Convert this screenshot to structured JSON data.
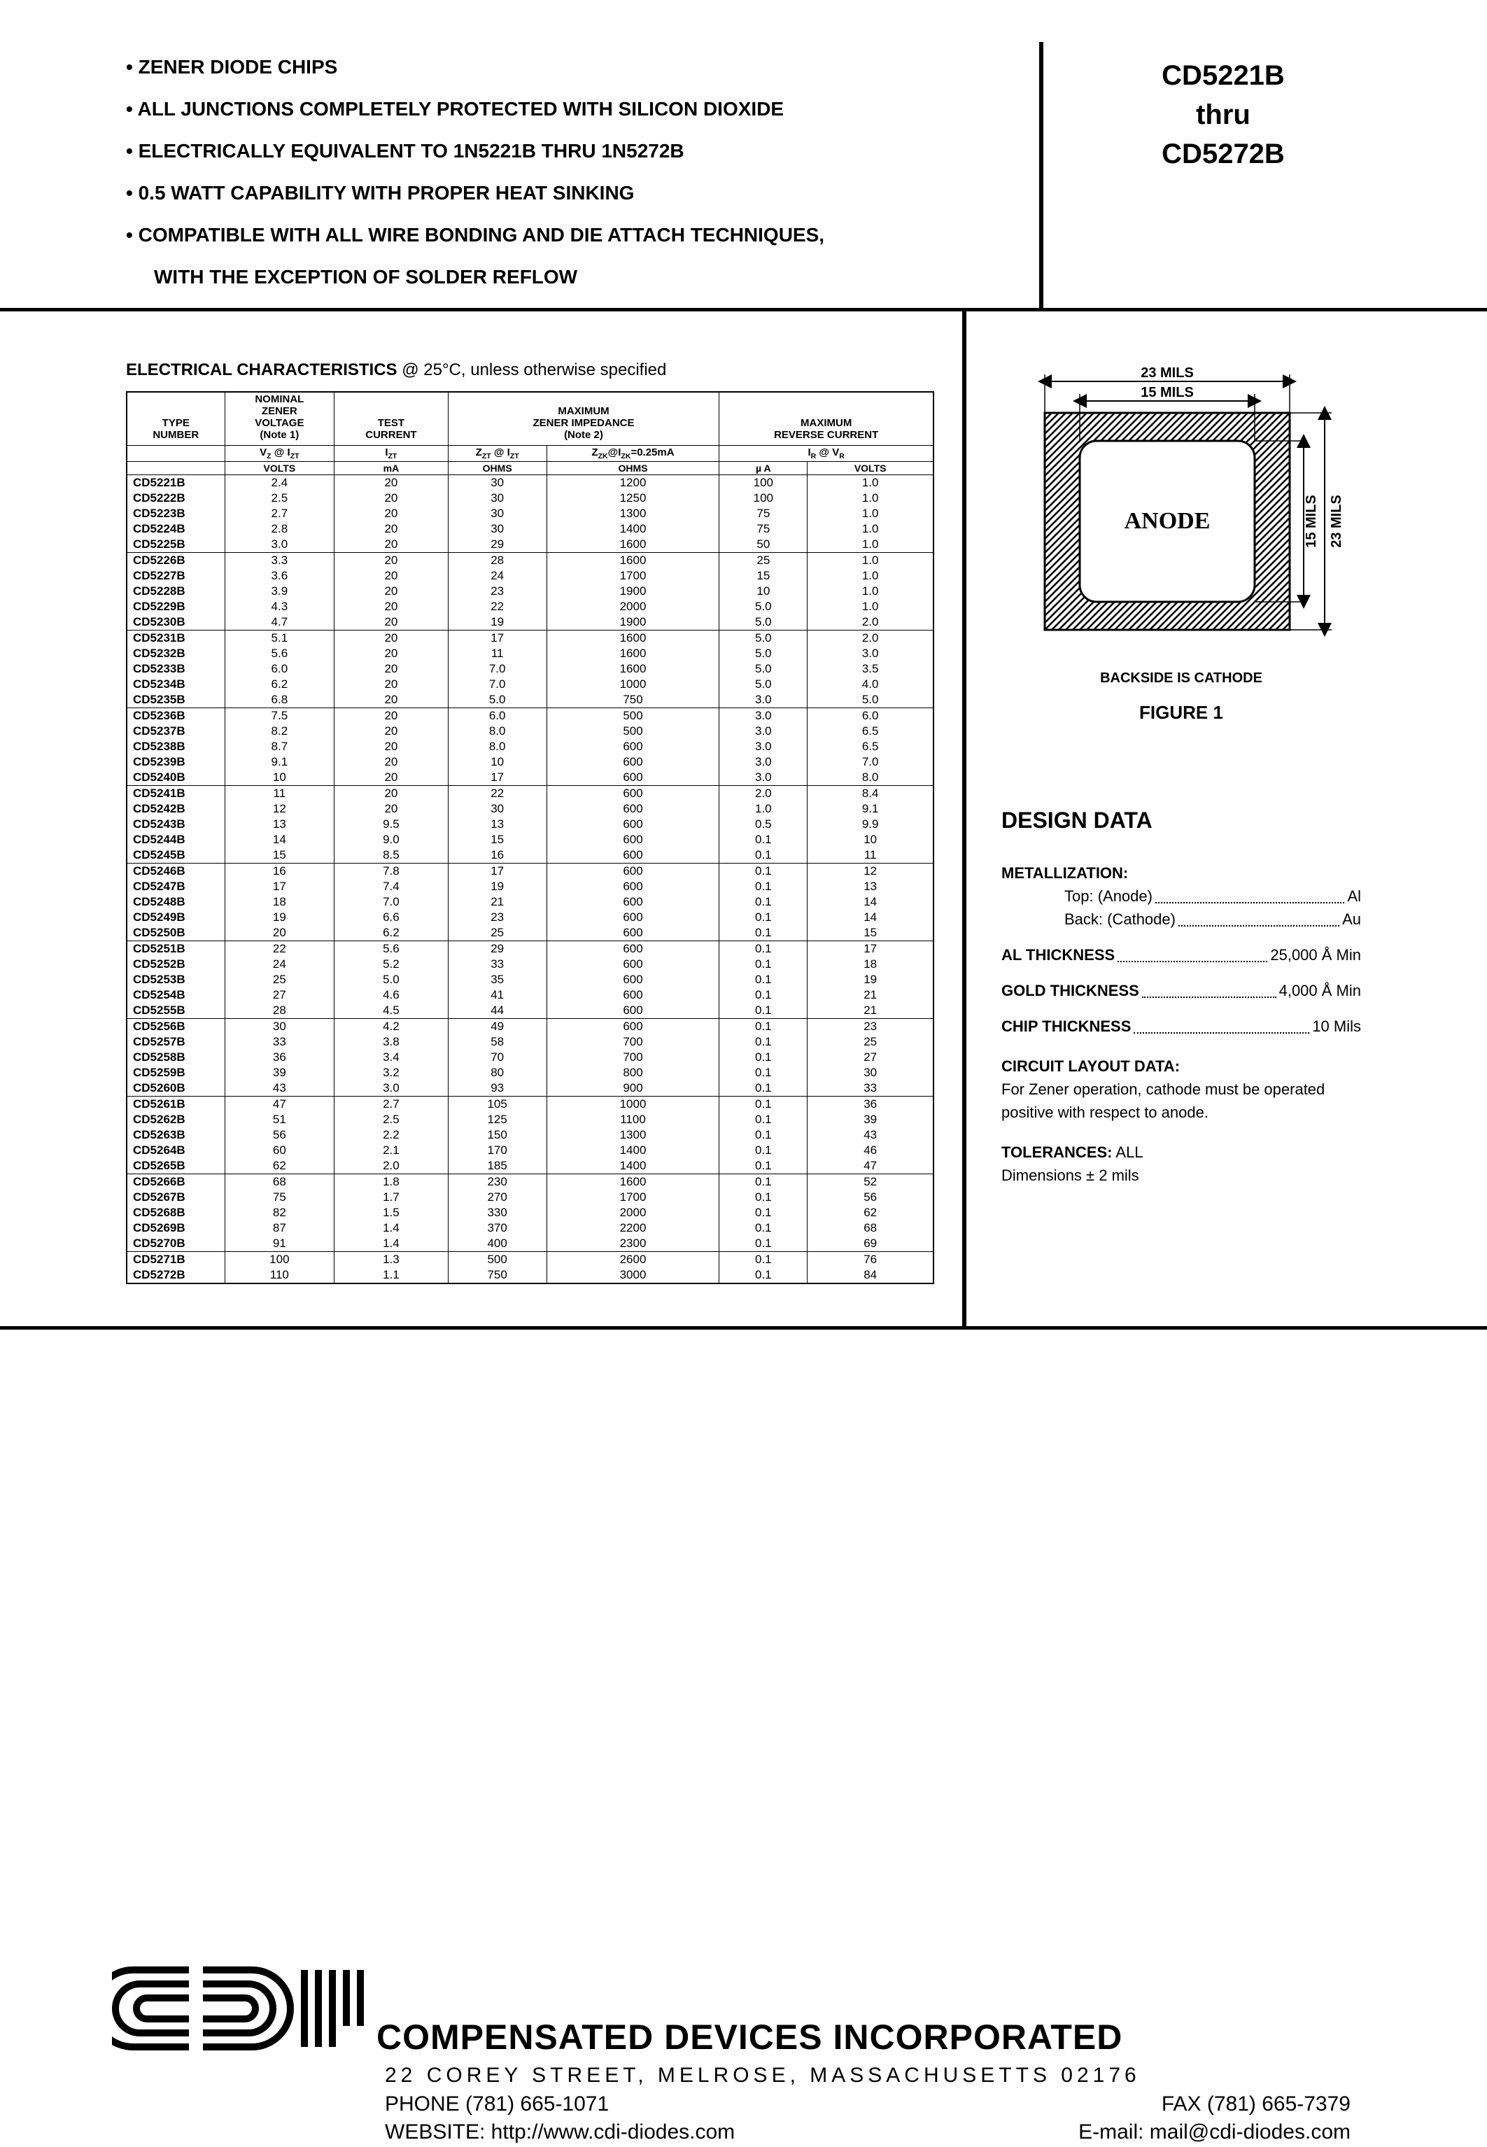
{
  "bullets": [
    "ZENER DIODE CHIPS",
    "ALL JUNCTIONS COMPLETELY PROTECTED WITH SILICON DIOXIDE",
    "ELECTRICALLY EQUIVALENT TO 1N5221B THRU 1N5272B",
    "0.5 WATT CAPABILITY WITH PROPER HEAT SINKING",
    "COMPATIBLE WITH ALL WIRE BONDING AND DIE ATTACH TECHNIQUES,"
  ],
  "bullet_cont": "WITH THE EXCEPTION OF SOLDER REFLOW",
  "part1": "CD5221B",
  "part_thru": "thru",
  "part2": "CD5272B",
  "ec_title": "ELECTRICAL CHARACTERISTICS",
  "ec_cond": " @ 25°C, unless otherwise specified",
  "hdr": {
    "c0": "TYPE\nNUMBER",
    "c1a": "NOMINAL\nZENER\nVOLTAGE\n(Note 1)",
    "c2a": "TEST\nCURRENT",
    "c34a": "MAXIMUM\nZENER IMPEDANCE\n(Note 2)",
    "c56a": "MAXIMUM\nREVERSE CURRENT",
    "r2c1": "VZ @ IZT",
    "r2c2": "IZT",
    "r2c3": "ZZT @ IZT",
    "r2c4": "ZZK@IZK=0.25mA",
    "r2c5": "IR @ VR",
    "u1": "VOLTS",
    "u2": "mA",
    "u3": "OHMS",
    "u4": "OHMS",
    "u5": "µ A",
    "u6": "VOLTS"
  },
  "rows": [
    [
      "CD5221B",
      "2.4",
      "20",
      "30",
      "1200",
      "100",
      "1.0"
    ],
    [
      "CD5222B",
      "2.5",
      "20",
      "30",
      "1250",
      "100",
      "1.0"
    ],
    [
      "CD5223B",
      "2.7",
      "20",
      "30",
      "1300",
      "75",
      "1.0"
    ],
    [
      "CD5224B",
      "2.8",
      "20",
      "30",
      "1400",
      "75",
      "1.0"
    ],
    [
      "CD5225B",
      "3.0",
      "20",
      "29",
      "1600",
      "50",
      "1.0"
    ],
    [
      "CD5226B",
      "3.3",
      "20",
      "28",
      "1600",
      "25",
      "1.0"
    ],
    [
      "CD5227B",
      "3.6",
      "20",
      "24",
      "1700",
      "15",
      "1.0"
    ],
    [
      "CD5228B",
      "3.9",
      "20",
      "23",
      "1900",
      "10",
      "1.0"
    ],
    [
      "CD5229B",
      "4.3",
      "20",
      "22",
      "2000",
      "5.0",
      "1.0"
    ],
    [
      "CD5230B",
      "4.7",
      "20",
      "19",
      "1900",
      "5.0",
      "2.0"
    ],
    [
      "CD5231B",
      "5.1",
      "20",
      "17",
      "1600",
      "5.0",
      "2.0"
    ],
    [
      "CD5232B",
      "5.6",
      "20",
      "11",
      "1600",
      "5.0",
      "3.0"
    ],
    [
      "CD5233B",
      "6.0",
      "20",
      "7.0",
      "1600",
      "5.0",
      "3.5"
    ],
    [
      "CD5234B",
      "6.2",
      "20",
      "7.0",
      "1000",
      "5.0",
      "4.0"
    ],
    [
      "CD5235B",
      "6.8",
      "20",
      "5.0",
      "750",
      "3.0",
      "5.0"
    ],
    [
      "CD5236B",
      "7.5",
      "20",
      "6.0",
      "500",
      "3.0",
      "6.0"
    ],
    [
      "CD5237B",
      "8.2",
      "20",
      "8.0",
      "500",
      "3.0",
      "6.5"
    ],
    [
      "CD5238B",
      "8.7",
      "20",
      "8.0",
      "600",
      "3.0",
      "6.5"
    ],
    [
      "CD5239B",
      "9.1",
      "20",
      "10",
      "600",
      "3.0",
      "7.0"
    ],
    [
      "CD5240B",
      "10",
      "20",
      "17",
      "600",
      "3.0",
      "8.0"
    ],
    [
      "CD5241B",
      "11",
      "20",
      "22",
      "600",
      "2.0",
      "8.4"
    ],
    [
      "CD5242B",
      "12",
      "20",
      "30",
      "600",
      "1.0",
      "9.1"
    ],
    [
      "CD5243B",
      "13",
      "9.5",
      "13",
      "600",
      "0.5",
      "9.9"
    ],
    [
      "CD5244B",
      "14",
      "9.0",
      "15",
      "600",
      "0.1",
      "10"
    ],
    [
      "CD5245B",
      "15",
      "8.5",
      "16",
      "600",
      "0.1",
      "11"
    ],
    [
      "CD5246B",
      "16",
      "7.8",
      "17",
      "600",
      "0.1",
      "12"
    ],
    [
      "CD5247B",
      "17",
      "7.4",
      "19",
      "600",
      "0.1",
      "13"
    ],
    [
      "CD5248B",
      "18",
      "7.0",
      "21",
      "600",
      "0.1",
      "14"
    ],
    [
      "CD5249B",
      "19",
      "6.6",
      "23",
      "600",
      "0.1",
      "14"
    ],
    [
      "CD5250B",
      "20",
      "6.2",
      "25",
      "600",
      "0.1",
      "15"
    ],
    [
      "CD5251B",
      "22",
      "5.6",
      "29",
      "600",
      "0.1",
      "17"
    ],
    [
      "CD5252B",
      "24",
      "5.2",
      "33",
      "600",
      "0.1",
      "18"
    ],
    [
      "CD5253B",
      "25",
      "5.0",
      "35",
      "600",
      "0.1",
      "19"
    ],
    [
      "CD5254B",
      "27",
      "4.6",
      "41",
      "600",
      "0.1",
      "21"
    ],
    [
      "CD5255B",
      "28",
      "4.5",
      "44",
      "600",
      "0.1",
      "21"
    ],
    [
      "CD5256B",
      "30",
      "4.2",
      "49",
      "600",
      "0.1",
      "23"
    ],
    [
      "CD5257B",
      "33",
      "3.8",
      "58",
      "700",
      "0.1",
      "25"
    ],
    [
      "CD5258B",
      "36",
      "3.4",
      "70",
      "700",
      "0.1",
      "27"
    ],
    [
      "CD5259B",
      "39",
      "3.2",
      "80",
      "800",
      "0.1",
      "30"
    ],
    [
      "CD5260B",
      "43",
      "3.0",
      "93",
      "900",
      "0.1",
      "33"
    ],
    [
      "CD5261B",
      "47",
      "2.7",
      "105",
      "1000",
      "0.1",
      "36"
    ],
    [
      "CD5262B",
      "51",
      "2.5",
      "125",
      "1100",
      "0.1",
      "39"
    ],
    [
      "CD5263B",
      "56",
      "2.2",
      "150",
      "1300",
      "0.1",
      "43"
    ],
    [
      "CD5264B",
      "60",
      "2.1",
      "170",
      "1400",
      "0.1",
      "46"
    ],
    [
      "CD5265B",
      "62",
      "2.0",
      "185",
      "1400",
      "0.1",
      "47"
    ],
    [
      "CD5266B",
      "68",
      "1.8",
      "230",
      "1600",
      "0.1",
      "52"
    ],
    [
      "CD5267B",
      "75",
      "1.7",
      "270",
      "1700",
      "0.1",
      "56"
    ],
    [
      "CD5268B",
      "82",
      "1.5",
      "330",
      "2000",
      "0.1",
      "62"
    ],
    [
      "CD5269B",
      "87",
      "1.4",
      "370",
      "2200",
      "0.1",
      "68"
    ],
    [
      "CD5270B",
      "91",
      "1.4",
      "400",
      "2300",
      "0.1",
      "69"
    ],
    [
      "CD5271B",
      "100",
      "1.3",
      "500",
      "2600",
      "0.1",
      "76"
    ],
    [
      "CD5272B",
      "110",
      "1.1",
      "750",
      "3000",
      "0.1",
      "84"
    ]
  ],
  "group_ends": [
    4,
    9,
    14,
    19,
    24,
    29,
    34,
    39,
    44,
    49,
    51
  ],
  "fig": {
    "outer": "23 MILS",
    "inner": "15 MILS",
    "anode": "ANODE",
    "cap": "BACKSIDE IS CATHODE",
    "title": "FIGURE 1"
  },
  "dd": {
    "title": "DESIGN DATA",
    "metal": "METALLIZATION:",
    "top_l": "Top: (Anode)",
    "top_r": "Al",
    "back_l": "Back: (Cathode)",
    "back_r": "Au",
    "alt_l": "AL THICKNESS",
    "alt_r": "25,000 Å Min",
    "gold_l": "GOLD THICKNESS",
    "gold_r": "4,000 Å Min",
    "chip_l": "CHIP THICKNESS",
    "chip_r": "10 Mils",
    "circ": "CIRCUIT LAYOUT DATA:",
    "circ_t": "For Zener operation, cathode must be operated positive with respect to anode.",
    "tol": "TOLERANCES:",
    "tol_v": " ALL",
    "tol_t": "Dimensions ± 2 mils"
  },
  "footer": {
    "company": "COMPENSATED DEVICES INCORPORATED",
    "addr": "22 COREY STREET, MELROSE, MASSACHUSETTS 02176",
    "phone": "PHONE (781) 665-1071",
    "fax": "FAX (781) 665-7379",
    "web": "WEBSITE:  http://www.cdi-diodes.com",
    "email": "E-mail: mail@cdi-diodes.com"
  }
}
